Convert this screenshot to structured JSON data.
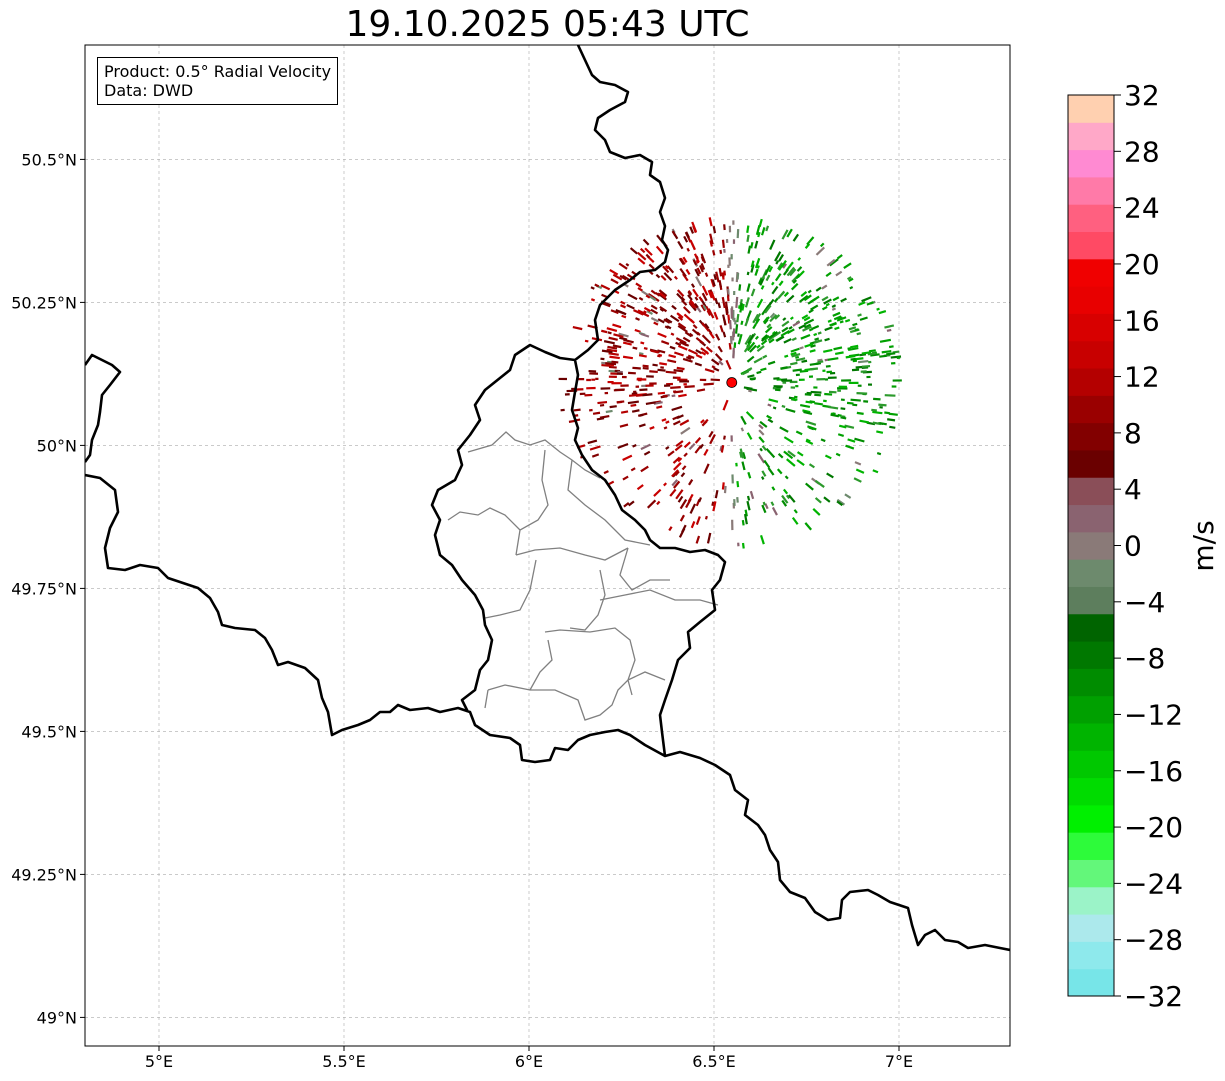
{
  "title": "19.10.2025 05:43 UTC",
  "info": {
    "product": "Product: 0.5° Radial Velocity",
    "data": "Data: DWD"
  },
  "map": {
    "lon_range": [
      4.8,
      7.3
    ],
    "lat_range": [
      48.95,
      50.7
    ],
    "x_ticks": [
      {
        "value": 5.0,
        "label": "5°E"
      },
      {
        "value": 5.5,
        "label": "5.5°E"
      },
      {
        "value": 6.0,
        "label": "6°E"
      },
      {
        "value": 6.5,
        "label": "6.5°E"
      },
      {
        "value": 7.0,
        "label": "7°E"
      }
    ],
    "y_ticks": [
      {
        "value": 49.0,
        "label": "49°N"
      },
      {
        "value": 49.25,
        "label": "49.25°N"
      },
      {
        "value": 49.5,
        "label": "49.5°N"
      },
      {
        "value": 49.75,
        "label": "49.75°N"
      },
      {
        "value": 50.0,
        "label": "50°N"
      },
      {
        "value": 50.25,
        "label": "50.25°N"
      },
      {
        "value": 50.5,
        "label": "50.5°N"
      }
    ],
    "radar_site": {
      "lon": 6.548,
      "lat": 50.11,
      "color": "#ff0000"
    },
    "max_range_deg": 0.47
  },
  "colorbar": {
    "label": "m/s",
    "min": -32,
    "max": 32,
    "ticks": [
      {
        "value": 32,
        "label": "32"
      },
      {
        "value": 28,
        "label": "28"
      },
      {
        "value": 24,
        "label": "24"
      },
      {
        "value": 20,
        "label": "20"
      },
      {
        "value": 16,
        "label": "16"
      },
      {
        "value": 12,
        "label": "12"
      },
      {
        "value": 8,
        "label": "8"
      },
      {
        "value": 4,
        "label": "4"
      },
      {
        "value": 0,
        "label": "0"
      },
      {
        "value": -4,
        "label": "−4"
      },
      {
        "value": -8,
        "label": "−8"
      },
      {
        "value": -12,
        "label": "−12"
      },
      {
        "value": -16,
        "label": "−16"
      },
      {
        "value": -20,
        "label": "−20"
      },
      {
        "value": -24,
        "label": "−24"
      },
      {
        "value": -28,
        "label": "−28"
      },
      {
        "value": -32,
        "label": "−32"
      }
    ],
    "colors": [
      "#77e5e8",
      "#8ee9ec",
      "#ace9ec",
      "#9bf3c8",
      "#63f77a",
      "#2dfb3a",
      "#00f000",
      "#00dc00",
      "#00c800",
      "#00b400",
      "#00a000",
      "#008c00",
      "#007800",
      "#006400",
      "#5d7e5d",
      "#6d8a6d",
      "#8a7a78",
      "#8a6370",
      "#8a4e58",
      "#6a0000",
      "#820000",
      "#9a0000",
      "#b40000",
      "#c80000",
      "#d80000",
      "#e80000",
      "#f00000",
      "#ff4a64",
      "#ff6080",
      "#ff7aa8",
      "#ff8ad2",
      "#ffa8c8",
      "#ffd0b0"
    ]
  }
}
